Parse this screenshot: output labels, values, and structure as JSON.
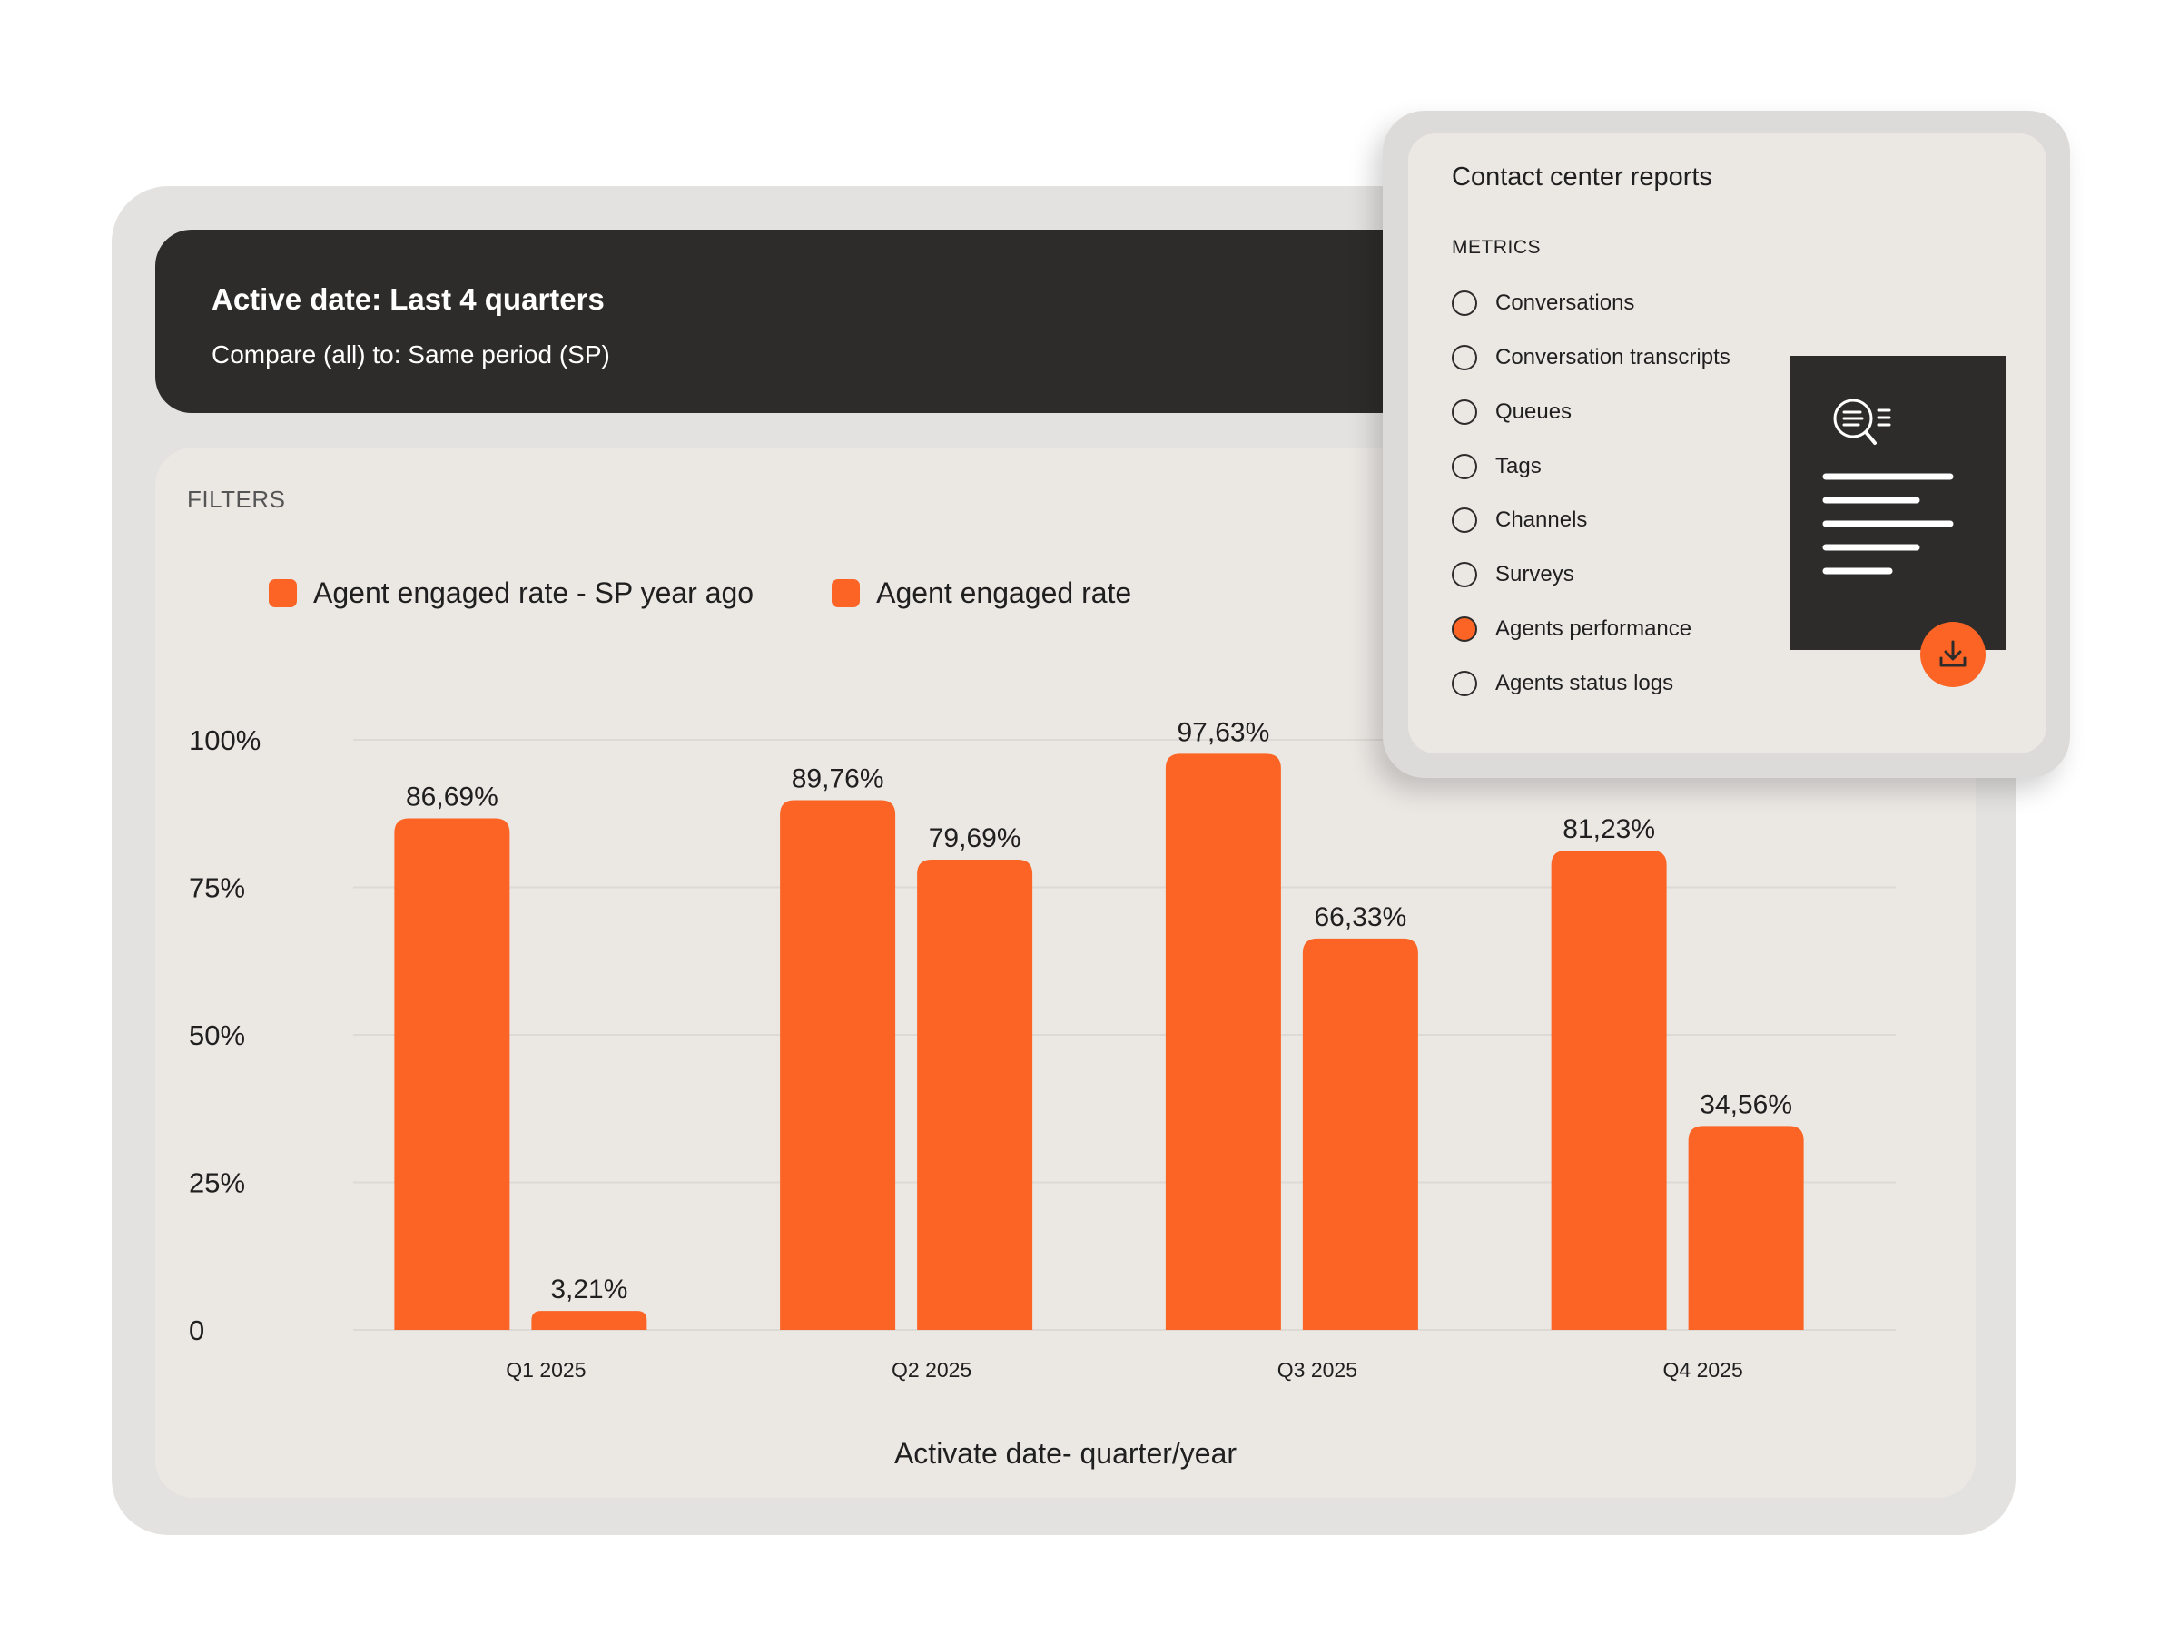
{
  "header": {
    "active_date": "Active date: Last 4 quarters",
    "compare": "Compare (all) to: Same period (SP)"
  },
  "filters_label": "FILTERS",
  "legend": [
    {
      "label": "Agent engaged rate - SP year ago",
      "color": "#fb6424"
    },
    {
      "label": "Agent engaged rate",
      "color": "#fb6424"
    }
  ],
  "chart_data": {
    "type": "bar",
    "title": "",
    "xlabel": "Activate date- quarter/year",
    "ylabel": "",
    "ylim": [
      0,
      100
    ],
    "yticks": [
      "0",
      "25%",
      "50%",
      "75%",
      "100%"
    ],
    "categories": [
      "Q1 2025",
      "Q2 2025",
      "Q3 2025",
      "Q4 2025"
    ],
    "series": [
      {
        "name": "Agent engaged rate - SP year ago",
        "values": [
          86.69,
          89.76,
          97.63,
          81.23
        ],
        "labels": [
          "86,69%",
          "89,76%",
          "97,63%",
          "81,23%"
        ],
        "color": "#fb6424"
      },
      {
        "name": "Agent engaged rate",
        "values": [
          3.21,
          79.69,
          66.33,
          34.56
        ],
        "labels": [
          "3,21%",
          "79,69%",
          "66,33%",
          "34,56%"
        ],
        "color": "#fb6424"
      }
    ],
    "grid": true,
    "legend_position": "top-left"
  },
  "reports": {
    "title": "Contact center reports",
    "section": "METRICS",
    "items": [
      {
        "label": "Conversations",
        "selected": false
      },
      {
        "label": "Conversation transcripts",
        "selected": false
      },
      {
        "label": "Queues",
        "selected": false
      },
      {
        "label": "Tags",
        "selected": false
      },
      {
        "label": "Channels",
        "selected": false
      },
      {
        "label": "Surveys",
        "selected": false
      },
      {
        "label": "Agents performance",
        "selected": true
      },
      {
        "label": "Agents status logs",
        "selected": false
      }
    ],
    "document_icon": "document-search-icon",
    "download_icon": "download-icon"
  },
  "colors": {
    "accent": "#fb6424",
    "dark": "#2d2c2b",
    "panel": "#ebe8e4",
    "frame": "#e3e2e0"
  }
}
